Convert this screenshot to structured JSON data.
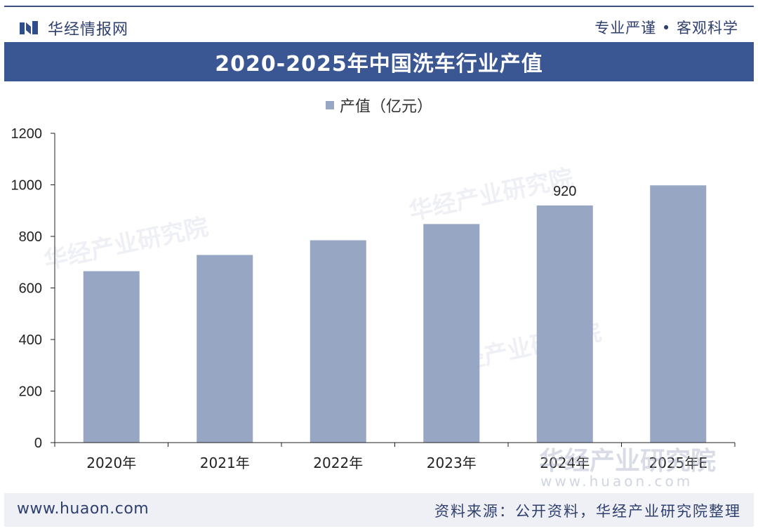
{
  "header": {
    "brand_name": "华经情报网",
    "tagline": "专业严谨 • 客观科学"
  },
  "title": "2020-2025年中国洗车行业产值",
  "legend_label": "产值（亿元）",
  "footer": {
    "site": "www.huaon.com",
    "source": "资料来源：公开资料，华经产业研究院整理"
  },
  "watermark": {
    "text": "华经产业研究院",
    "url": "www.huaon.com"
  },
  "colors": {
    "bar": "#97a6c2",
    "title_bar": "#3b5793",
    "brand": "#2f3f6e"
  },
  "chart_data": {
    "type": "bar",
    "categories": [
      "2020年",
      "2021年",
      "2022年",
      "2023年",
      "2024年",
      "2025年E"
    ],
    "series": [
      {
        "name": "产值（亿元）",
        "values": [
          665,
          728,
          785,
          848,
          920,
          998
        ]
      }
    ],
    "data_labels": {
      "2024年": "920"
    },
    "ylim": [
      0,
      1200
    ],
    "yticks": [
      "0",
      "200",
      "400",
      "600",
      "800",
      "1000",
      "1200"
    ],
    "grid": false,
    "legend": "top-center"
  }
}
